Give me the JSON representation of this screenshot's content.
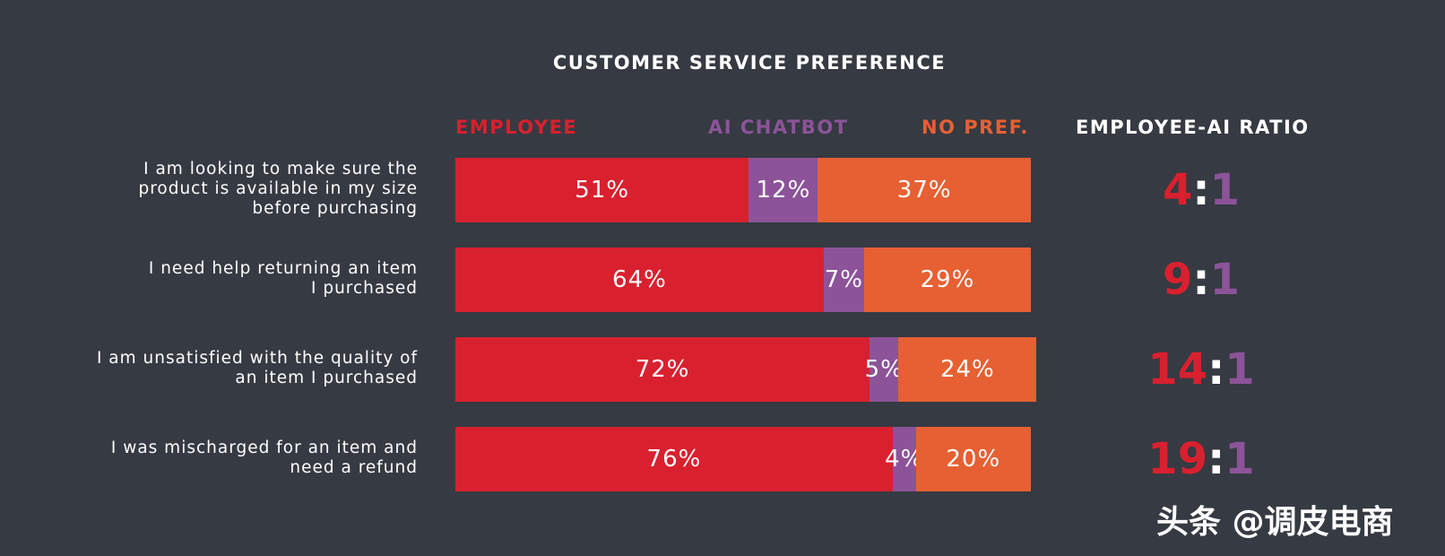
{
  "chart_data": {
    "type": "bar",
    "stacked": true,
    "orientation": "horizontal",
    "title": "CUSTOMER SERVICE PREFERENCE",
    "categories": [
      "I am looking to make sure the product is available in my size before purchasing",
      "I need help returning an item I purchased",
      "I am unsatisfied with the quality of an item I purchased",
      "I was mischarged for an item and need a refund"
    ],
    "category_lines": [
      [
        "I am looking to make sure the",
        "product is available in my size",
        "before purchasing"
      ],
      [
        "I need help returning an item",
        "I purchased"
      ],
      [
        "I am unsatisfied with the quality of",
        "an item I purchased"
      ],
      [
        "I was mischarged for an item and",
        "need a refund"
      ]
    ],
    "series": [
      {
        "name": "EMPLOYEE",
        "color": "#d9202f",
        "values": [
          51,
          64,
          72,
          76
        ]
      },
      {
        "name": "AI CHATBOT",
        "color": "#8c5399",
        "values": [
          12,
          7,
          5,
          4
        ]
      },
      {
        "name": "NO PREF.",
        "color": "#e66033",
        "values": [
          37,
          29,
          24,
          20
        ]
      }
    ],
    "value_suffix": "%",
    "ratio_header": "EMPLOYEE-AI RATIO",
    "ratios": [
      {
        "employee": "4",
        "ai": "1"
      },
      {
        "employee": "9",
        "ai": "1"
      },
      {
        "employee": "14",
        "ai": "1"
      },
      {
        "employee": "19",
        "ai": "1"
      }
    ],
    "ratio_separator": ":",
    "legend_position": "top"
  },
  "watermark": "头条 @调皮电商"
}
